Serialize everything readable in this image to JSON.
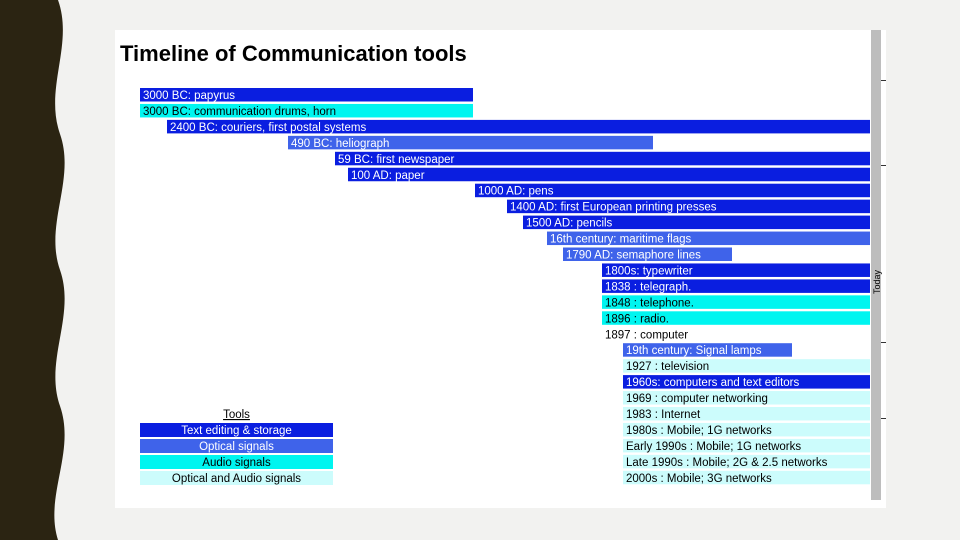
{
  "slide": {
    "border_left_color": "#2b2412",
    "border_right_color": "#f7b733"
  },
  "chart_data": {
    "type": "bar",
    "title": "Timeline of Communication tools",
    "today_label": "Today",
    "categories_colors": {
      "Text editing & storage": "#0a1ee0",
      "Optical signals": "#3f63ea",
      "Audio signals": "#00f5f0",
      "Optical and Audio signals": "#ccfcfc"
    },
    "events": [
      {
        "label": "3000 BC: papyrus",
        "category": "Text editing & storage"
      },
      {
        "label": "3000 BC: communication drums, horn",
        "category": "Audio signals"
      },
      {
        "label": "2400 BC: couriers, first postal systems",
        "category": "Text editing & storage"
      },
      {
        "label": "490 BC: heliograph",
        "category": "Optical signals"
      },
      {
        "label": "59 BC: first newspaper",
        "category": "Text editing & storage"
      },
      {
        "label": "100 AD: paper",
        "category": "Text editing & storage"
      },
      {
        "label": "1000 AD: pens",
        "category": "Text editing & storage"
      },
      {
        "label": "1400 AD: first European printing presses",
        "category": "Text editing & storage"
      },
      {
        "label": "1500 AD: pencils",
        "category": "Text editing & storage"
      },
      {
        "label": "16th century: maritime flags",
        "category": "Optical signals"
      },
      {
        "label": "1790 AD: semaphore lines",
        "category": "Optical signals"
      },
      {
        "label": "1800s: typewriter",
        "category": "Text editing & storage"
      },
      {
        "label": "1838 : telegraph.",
        "category": "Text editing & storage"
      },
      {
        "label": "1848 : telephone.",
        "category": "Audio signals"
      },
      {
        "label": "1896 : radio.",
        "category": "Audio signals"
      },
      {
        "label": "1897 : computer",
        "category": "none"
      },
      {
        "label": "19th century: Signal lamps",
        "category": "Optical signals"
      },
      {
        "label": "1927 : television",
        "category": "Optical and Audio signals"
      },
      {
        "label": "1960s: computers and text editors",
        "category": "Text editing & storage"
      },
      {
        "label": "1969 : computer networking",
        "category": "Optical and Audio signals"
      },
      {
        "label": "1983 : Internet",
        "category": "Optical and Audio signals"
      },
      {
        "label": "1980s : Mobile; 1G networks",
        "category": "Optical and Audio signals"
      },
      {
        "label": "Early 1990s : Mobile; 1G networks",
        "category": "Optical and Audio signals"
      },
      {
        "label": "Late 1990s : Mobile; 2G & 2.5 networks",
        "category": "Optical and Audio signals"
      },
      {
        "label": "2000s : Mobile; 3G networks",
        "category": "Optical and Audio signals"
      }
    ],
    "legend": {
      "title": "Tools",
      "items": [
        "Text editing & storage",
        "Optical signals",
        "Audio signals",
        "Optical and Audio signals"
      ]
    }
  }
}
